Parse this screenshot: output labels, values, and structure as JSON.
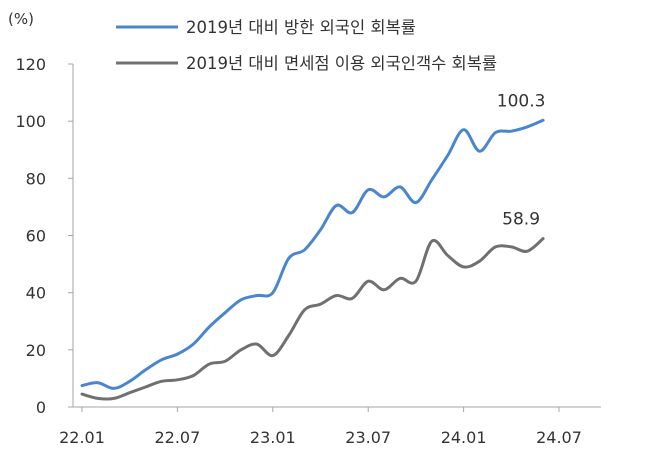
{
  "chart_data": {
    "type": "line",
    "unit_label": "(%)",
    "ylim": [
      0,
      120
    ],
    "yticks": [
      0,
      20,
      40,
      60,
      80,
      100,
      120
    ],
    "x_ticks": [
      "22.01",
      "22.07",
      "23.01",
      "23.07",
      "24.01",
      "24.07"
    ],
    "x_start": "2022-01",
    "legend_position": "top",
    "grid": false,
    "series": [
      {
        "name": "2019년 대비 방한 외국인 회복률",
        "color": "#4a86cf",
        "end_label": "100.3",
        "values": [
          7.5,
          8.5,
          6.5,
          9,
          13,
          16.5,
          18.5,
          22,
          28,
          33,
          37.5,
          39,
          40,
          52,
          55,
          62,
          70.5,
          68,
          76,
          73.5,
          77,
          71.5,
          79.5,
          88,
          97,
          89.5,
          96,
          96.5,
          98,
          100.3
        ]
      },
      {
        "name": "2019년 대비 면세점 이용 외국인객수 회복률",
        "color": "#707070",
        "end_label": "58.9",
        "values": [
          4.5,
          3,
          3,
          5,
          7,
          9,
          9.5,
          11,
          15,
          16,
          20,
          22,
          18,
          25,
          34,
          36,
          39,
          38,
          44,
          41,
          45,
          44,
          58,
          53,
          49,
          51,
          56,
          56,
          54.5,
          58.9
        ]
      }
    ]
  }
}
